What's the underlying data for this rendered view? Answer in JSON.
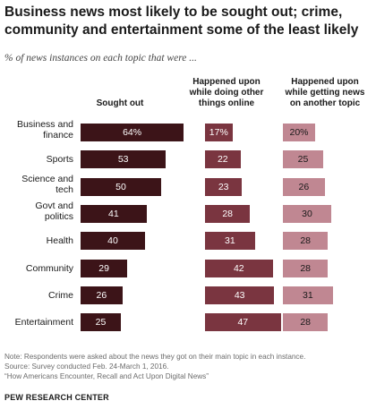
{
  "chart_data": {
    "type": "bar",
    "title": "Business news most likely to be sought out; crime, community and entertainment some of the least likely",
    "subtitle": "% of news instances on each topic that were ...",
    "categories": [
      [
        "Business and",
        "finance"
      ],
      [
        "Sports"
      ],
      [
        "Science and",
        "tech"
      ],
      [
        "Govt and",
        "politics"
      ],
      [
        "Health"
      ],
      [
        "Community"
      ],
      [
        "Crime"
      ],
      [
        "Entertainment"
      ]
    ],
    "series": [
      {
        "name": [
          "Sought out"
        ],
        "values": [
          64,
          53,
          50,
          41,
          40,
          29,
          26,
          25
        ],
        "labels": [
          "64%",
          "53",
          "50",
          "41",
          "40",
          "29",
          "26",
          "25"
        ],
        "color": "#3c1418"
      },
      {
        "name": [
          "Happened upon",
          "while doing other",
          "things online"
        ],
        "values": [
          17,
          22,
          23,
          28,
          31,
          42,
          43,
          47
        ],
        "labels": [
          "17%",
          "22",
          "23",
          "28",
          "31",
          "42",
          "43",
          "47"
        ],
        "color": "#7a3540"
      },
      {
        "name": [
          "Happened upon",
          "while getting news",
          "on another topic"
        ],
        "values": [
          20,
          25,
          26,
          30,
          28,
          28,
          31,
          28
        ],
        "labels": [
          "20%",
          "25",
          "26",
          "30",
          "28",
          "28",
          "31",
          "28"
        ],
        "color": "#c08792"
      }
    ]
  },
  "footer": {
    "note": "Note: Respondents were asked about the news they got on their main topic in each instance.",
    "source": "Source: Survey conducted Feb. 24-March 1, 2016.",
    "report": "“How Americans Encounter, Recall and Act Upon Digital News”",
    "brand": "PEW RESEARCH CENTER"
  }
}
